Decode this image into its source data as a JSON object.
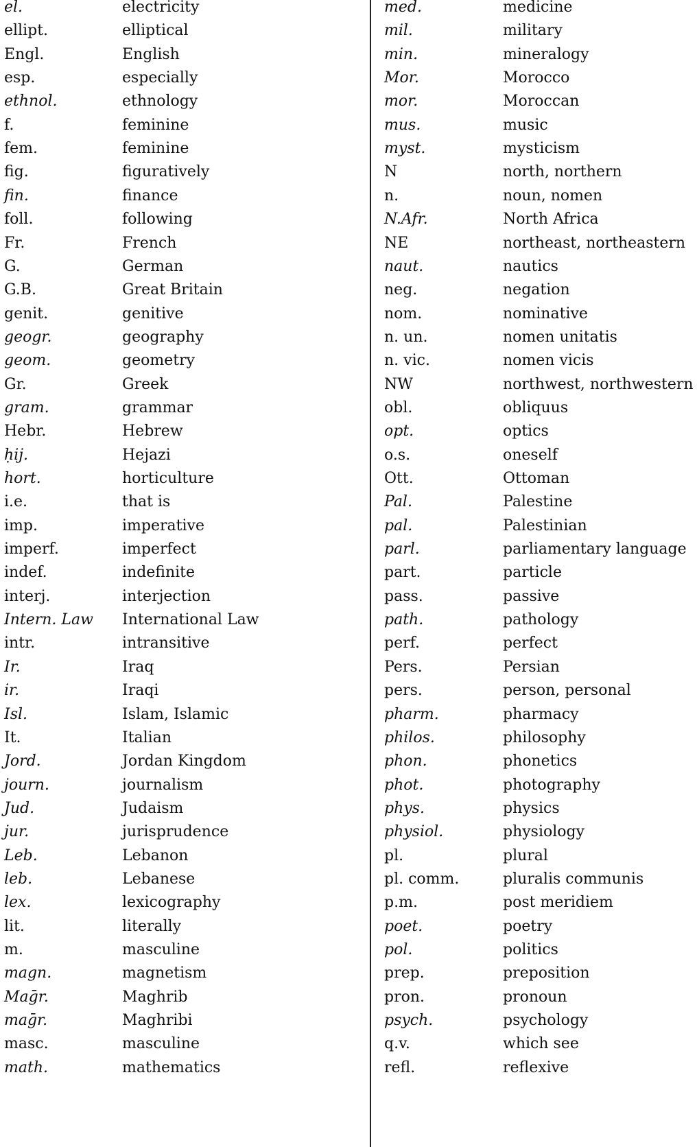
{
  "left_entries": [
    {
      "abbr": "el.",
      "meaning": "electricity",
      "italic": true
    },
    {
      "abbr": "ellipt.",
      "meaning": "elliptical",
      "italic": false
    },
    {
      "abbr": "Engl.",
      "meaning": "English",
      "italic": false
    },
    {
      "abbr": "esp.",
      "meaning": "especially",
      "italic": false
    },
    {
      "abbr": "ethnol.",
      "meaning": "ethnology",
      "italic": true
    },
    {
      "abbr": "f.",
      "meaning": "feminine",
      "italic": false
    },
    {
      "abbr": "fem.",
      "meaning": "feminine",
      "italic": false
    },
    {
      "abbr": "fig.",
      "meaning": "figuratively",
      "italic": false
    },
    {
      "abbr": "fin.",
      "meaning": "finance",
      "italic": true
    },
    {
      "abbr": "foll.",
      "meaning": "following",
      "italic": false
    },
    {
      "abbr": "Fr.",
      "meaning": "French",
      "italic": false
    },
    {
      "abbr": "G.",
      "meaning": "German",
      "italic": false
    },
    {
      "abbr": "G.B.",
      "meaning": "Great Britain",
      "italic": false
    },
    {
      "abbr": "genit.",
      "meaning": "genitive",
      "italic": false
    },
    {
      "abbr": "geogr.",
      "meaning": "geography",
      "italic": true
    },
    {
      "abbr": "geom.",
      "meaning": "geometry",
      "italic": true
    },
    {
      "abbr": "Gr.",
      "meaning": "Greek",
      "italic": false
    },
    {
      "abbr": "gram.",
      "meaning": "grammar",
      "italic": true
    },
    {
      "abbr": "Hebr.",
      "meaning": "Hebrew",
      "italic": false
    },
    {
      "abbr": "ḥij.",
      "meaning": "Hejazi",
      "italic": true
    },
    {
      "abbr": "hort.",
      "meaning": "horticulture",
      "italic": true
    },
    {
      "abbr": "i.e.",
      "meaning": "that is",
      "italic": false
    },
    {
      "abbr": "imp.",
      "meaning": "imperative",
      "italic": false
    },
    {
      "abbr": "imperf.",
      "meaning": "imperfect",
      "italic": false
    },
    {
      "abbr": "indef.",
      "meaning": "indefinite",
      "italic": false
    },
    {
      "abbr": "interj.",
      "meaning": "interjection",
      "italic": false
    },
    {
      "abbr": "Intern. Law",
      "meaning": "International Law",
      "italic": true
    },
    {
      "abbr": "intr.",
      "meaning": "intransitive",
      "italic": false
    },
    {
      "abbr": "Ir.",
      "meaning": "Iraq",
      "italic": true
    },
    {
      "abbr": "ir.",
      "meaning": "Iraqi",
      "italic": true
    },
    {
      "abbr": "Isl.",
      "meaning": "Islam, Islamic",
      "italic": true
    },
    {
      "abbr": "It.",
      "meaning": "Italian",
      "italic": false
    },
    {
      "abbr": "Jord.",
      "meaning": "Jordan Kingdom",
      "italic": true
    },
    {
      "abbr": "journ.",
      "meaning": "journalism",
      "italic": true
    },
    {
      "abbr": "Jud.",
      "meaning": "Judaism",
      "italic": true
    },
    {
      "abbr": "jur.",
      "meaning": "jurisprudence",
      "italic": true
    },
    {
      "abbr": "Leb.",
      "meaning": "Lebanon",
      "italic": true
    },
    {
      "abbr": "leb.",
      "meaning": "Lebanese",
      "italic": true
    },
    {
      "abbr": "lex.",
      "meaning": "lexicography",
      "italic": true
    },
    {
      "abbr": "lit.",
      "meaning": "literally",
      "italic": false
    },
    {
      "abbr": "m.",
      "meaning": "masculine",
      "italic": false
    },
    {
      "abbr": "magn.",
      "meaning": "magnetism",
      "italic": true
    },
    {
      "abbr": "Maḡr.",
      "meaning": "Maghrib",
      "italic": true
    },
    {
      "abbr": "maḡr.",
      "meaning": "Maghribi",
      "italic": true
    },
    {
      "abbr": "masc.",
      "meaning": "masculine",
      "italic": false
    },
    {
      "abbr": "math.",
      "meaning": "mathematics",
      "italic": true
    }
  ],
  "right_entries": [
    {
      "abbr": "med.",
      "meaning": "medicine",
      "italic": true
    },
    {
      "abbr": "mil.",
      "meaning": "military",
      "italic": true
    },
    {
      "abbr": "min.",
      "meaning": "mineralogy",
      "italic": true
    },
    {
      "abbr": "Mor.",
      "meaning": "Morocco",
      "italic": true
    },
    {
      "abbr": "mor.",
      "meaning": "Moroccan",
      "italic": true
    },
    {
      "abbr": "mus.",
      "meaning": "music",
      "italic": true
    },
    {
      "abbr": "myst.",
      "meaning": "mysticism",
      "italic": true
    },
    {
      "abbr": "N",
      "meaning": "north, northern",
      "italic": false
    },
    {
      "abbr": "n.",
      "meaning": "noun, nomen",
      "italic": false
    },
    {
      "abbr": "N.Afr.",
      "meaning": "North Africa",
      "italic": true
    },
    {
      "abbr": "NE",
      "meaning": "northeast, northeastern",
      "italic": false
    },
    {
      "abbr": "naut.",
      "meaning": "nautics",
      "italic": true
    },
    {
      "abbr": "neg.",
      "meaning": "negation",
      "italic": false
    },
    {
      "abbr": "nom.",
      "meaning": "nominative",
      "italic": false
    },
    {
      "abbr": "n. un.",
      "meaning": "nomen unitatis",
      "italic": false
    },
    {
      "abbr": "n. vic.",
      "meaning": "nomen vicis",
      "italic": false
    },
    {
      "abbr": "NW",
      "meaning": "northwest, northwestern",
      "italic": false
    },
    {
      "abbr": "obl.",
      "meaning": "obliquus",
      "italic": false
    },
    {
      "abbr": "opt.",
      "meaning": "optics",
      "italic": true
    },
    {
      "abbr": "o.s.",
      "meaning": "oneself",
      "italic": false
    },
    {
      "abbr": "Ott.",
      "meaning": "Ottoman",
      "italic": false
    },
    {
      "abbr": "Pal.",
      "meaning": "Palestine",
      "italic": true
    },
    {
      "abbr": "pal.",
      "meaning": "Palestinian",
      "italic": true
    },
    {
      "abbr": "parl.",
      "meaning": "parliamentary language",
      "italic": true
    },
    {
      "abbr": "part.",
      "meaning": "particle",
      "italic": false
    },
    {
      "abbr": "pass.",
      "meaning": "passive",
      "italic": false
    },
    {
      "abbr": "path.",
      "meaning": "pathology",
      "italic": true
    },
    {
      "abbr": "perf.",
      "meaning": "perfect",
      "italic": false
    },
    {
      "abbr": "Pers.",
      "meaning": "Persian",
      "italic": false
    },
    {
      "abbr": "pers.",
      "meaning": "person, personal",
      "italic": false
    },
    {
      "abbr": "pharm.",
      "meaning": "pharmacy",
      "italic": true
    },
    {
      "abbr": "philos.",
      "meaning": "philosophy",
      "italic": true
    },
    {
      "abbr": "phon.",
      "meaning": "phonetics",
      "italic": true
    },
    {
      "abbr": "phot.",
      "meaning": "photography",
      "italic": true
    },
    {
      "abbr": "phys.",
      "meaning": "physics",
      "italic": true
    },
    {
      "abbr": "physiol.",
      "meaning": "physiology",
      "italic": true
    },
    {
      "abbr": "pl.",
      "meaning": "plural",
      "italic": false
    },
    {
      "abbr": "pl. comm.",
      "meaning": "pluralis communis",
      "italic": false
    },
    {
      "abbr": "p.m.",
      "meaning": "post meridiem",
      "italic": false
    },
    {
      "abbr": "poet.",
      "meaning": "poetry",
      "italic": true
    },
    {
      "abbr": "pol.",
      "meaning": "politics",
      "italic": true
    },
    {
      "abbr": "prep.",
      "meaning": "preposition",
      "italic": false
    },
    {
      "abbr": "pron.",
      "meaning": "pronoun",
      "italic": false
    },
    {
      "abbr": "psych.",
      "meaning": "psychology",
      "italic": true
    },
    {
      "abbr": "q.v.",
      "meaning": "which see",
      "italic": false
    },
    {
      "abbr": "refl.",
      "meaning": "reflexive",
      "italic": false
    }
  ]
}
